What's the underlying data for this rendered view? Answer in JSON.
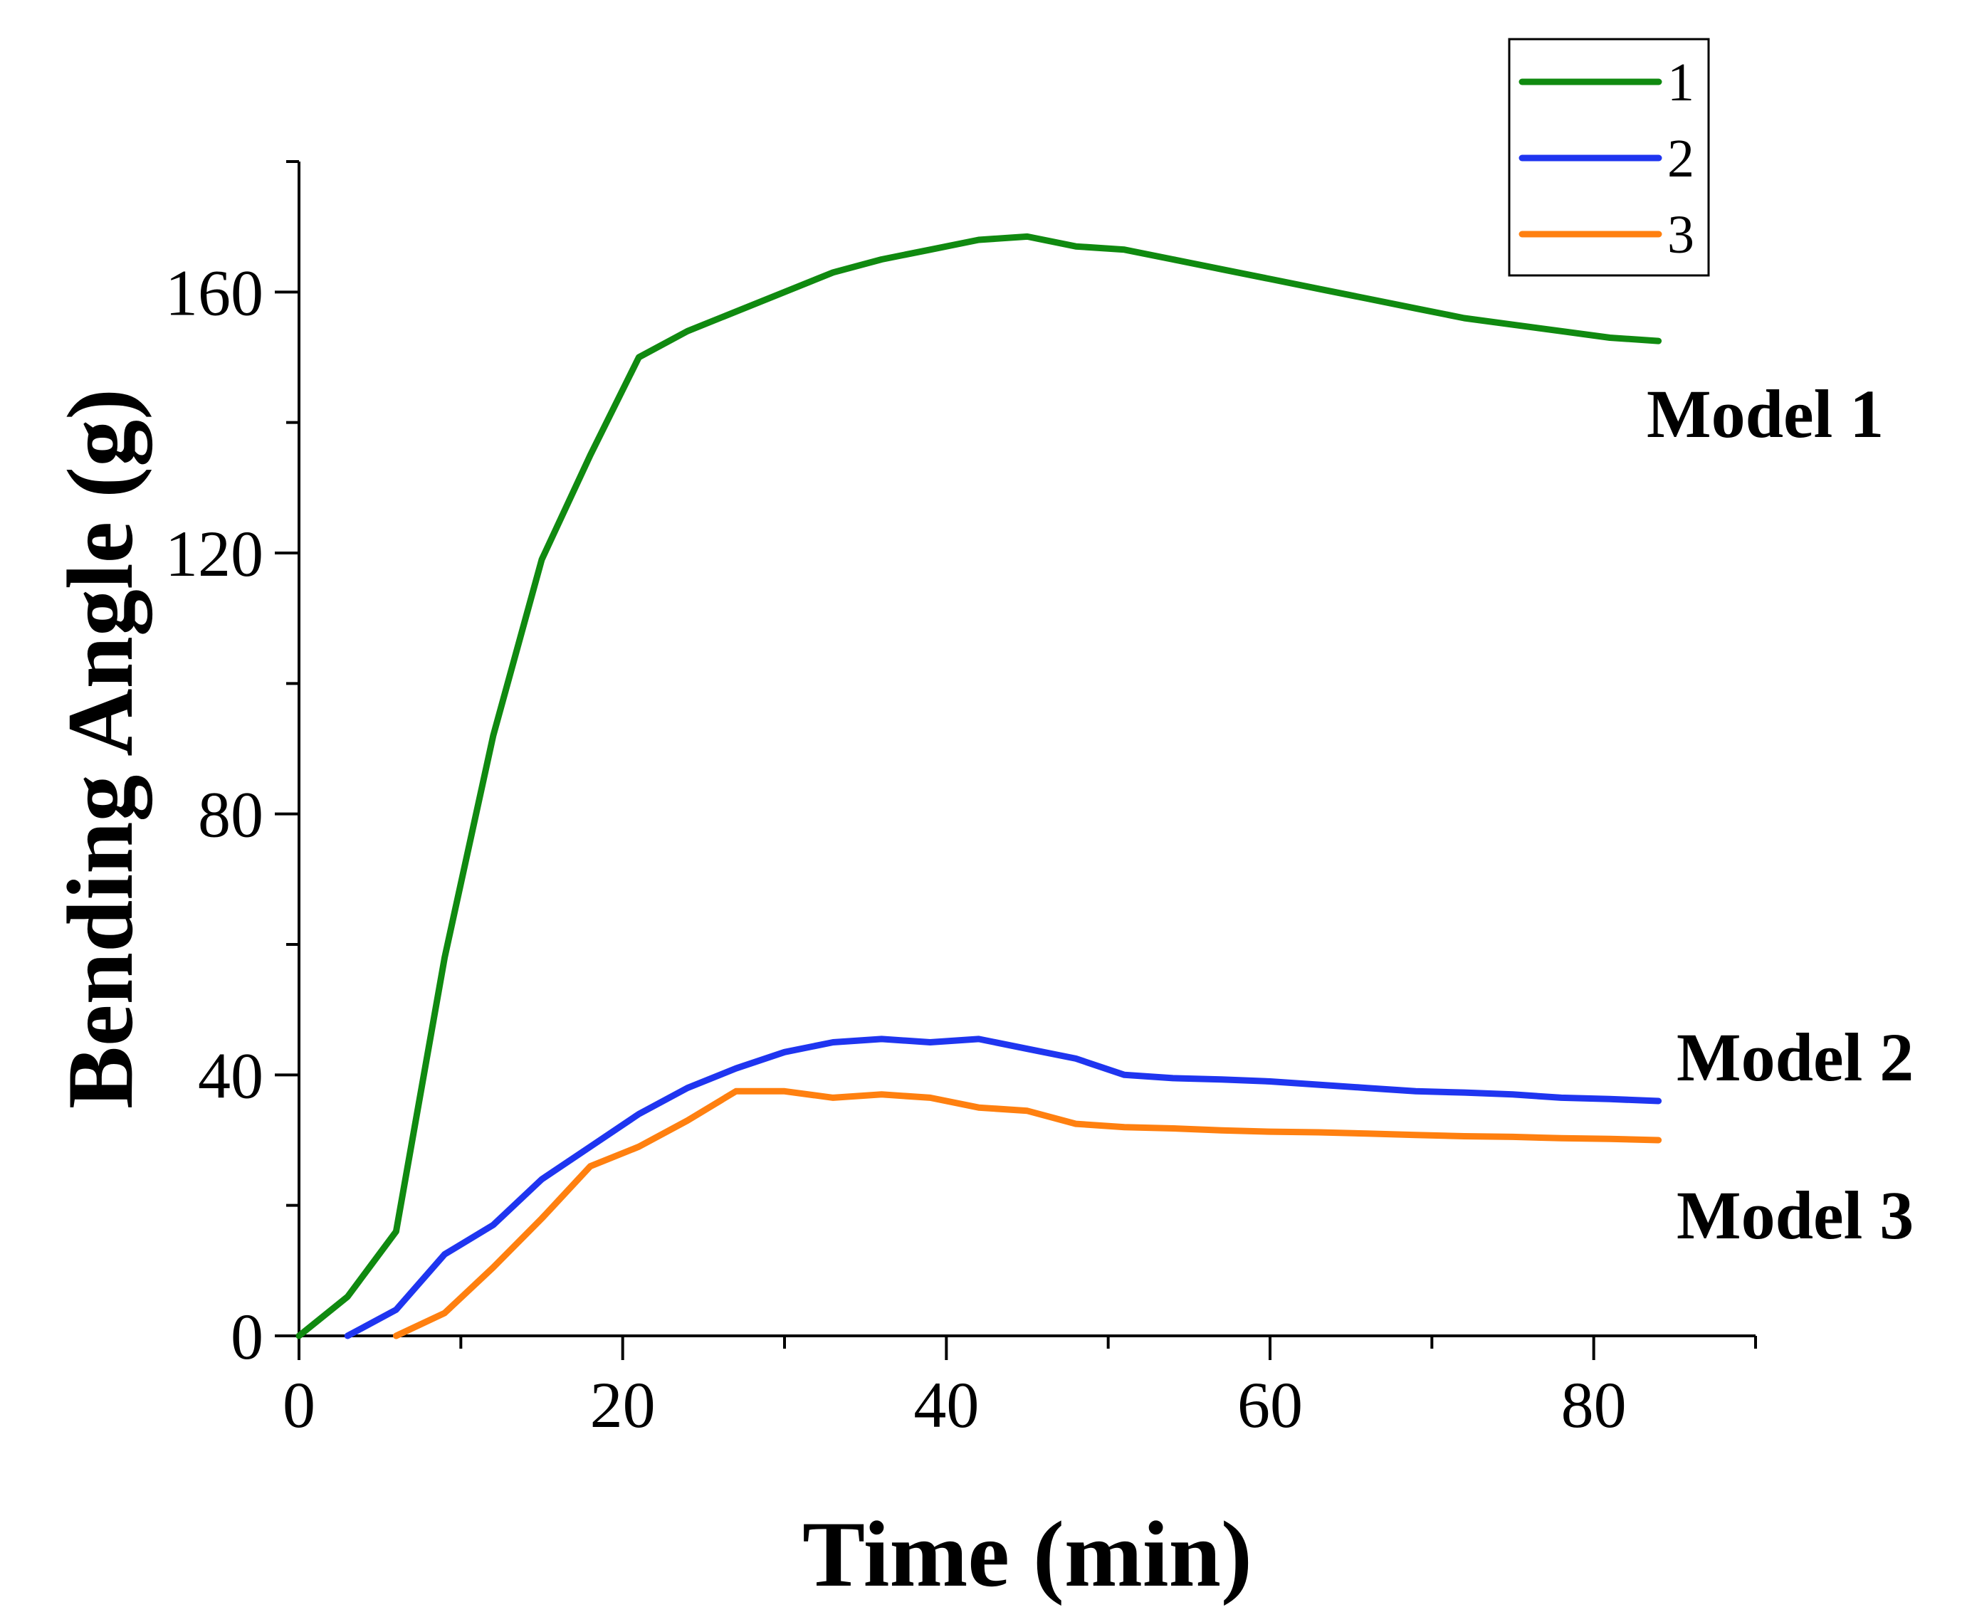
{
  "chart_data": {
    "type": "line",
    "title": "",
    "xlabel": "Time (min)",
    "ylabel": "Bending Angle (g)",
    "xlim": [
      0,
      90
    ],
    "ylim": [
      0,
      180
    ],
    "x_ticks": [
      0,
      20,
      40,
      60,
      80
    ],
    "y_ticks": [
      0,
      40,
      80,
      120,
      160
    ],
    "x_minor": [
      10,
      30,
      50,
      70,
      90
    ],
    "y_minor": [
      20,
      60,
      100,
      140,
      180
    ],
    "grid": false,
    "legend_position": "top-right",
    "series": [
      {
        "name": "1",
        "color": "#108A10",
        "x": [
          0,
          3,
          6,
          9,
          12,
          15,
          18,
          21,
          24,
          27,
          30,
          33,
          36,
          39,
          42,
          45,
          48,
          51,
          54,
          57,
          60,
          63,
          66,
          69,
          72,
          75,
          78,
          81,
          84
        ],
        "y": [
          0,
          6,
          16,
          58,
          92,
          119,
          135,
          150,
          154,
          157,
          160,
          163,
          165,
          166.5,
          168,
          168.5,
          167,
          166.5,
          165,
          163.5,
          162,
          160.5,
          159,
          157.5,
          156,
          155,
          154,
          153,
          152.5
        ]
      },
      {
        "name": "2",
        "color": "#1F35F0",
        "x": [
          3,
          6,
          9,
          12,
          15,
          18,
          21,
          24,
          27,
          30,
          33,
          36,
          39,
          42,
          45,
          48,
          51,
          54,
          57,
          60,
          63,
          66,
          69,
          72,
          75,
          78,
          81,
          84
        ],
        "y": [
          0,
          4,
          12.5,
          17,
          24,
          29,
          34,
          38,
          41,
          43.5,
          45,
          45.5,
          45,
          45.5,
          44,
          42.5,
          40,
          39.5,
          39.3,
          39,
          38.5,
          38,
          37.5,
          37.3,
          37,
          36.5,
          36.3,
          36
        ]
      },
      {
        "name": "3",
        "color": "#FF8010",
        "x": [
          6,
          9,
          12,
          15,
          18,
          21,
          24,
          27,
          30,
          33,
          36,
          39,
          42,
          45,
          48,
          51,
          54,
          57,
          60,
          63,
          66,
          69,
          72,
          75,
          78,
          81,
          84
        ],
        "y": [
          0,
          3.5,
          10.5,
          18,
          26,
          29,
          33,
          37.5,
          37.5,
          36.5,
          37,
          36.5,
          35,
          34.5,
          32.5,
          32,
          31.8,
          31.5,
          31.3,
          31.2,
          31,
          30.8,
          30.6,
          30.5,
          30.3,
          30.2,
          30
        ]
      }
    ],
    "annotations": [
      "Model 1",
      "Model 2",
      "Model 3"
    ]
  }
}
